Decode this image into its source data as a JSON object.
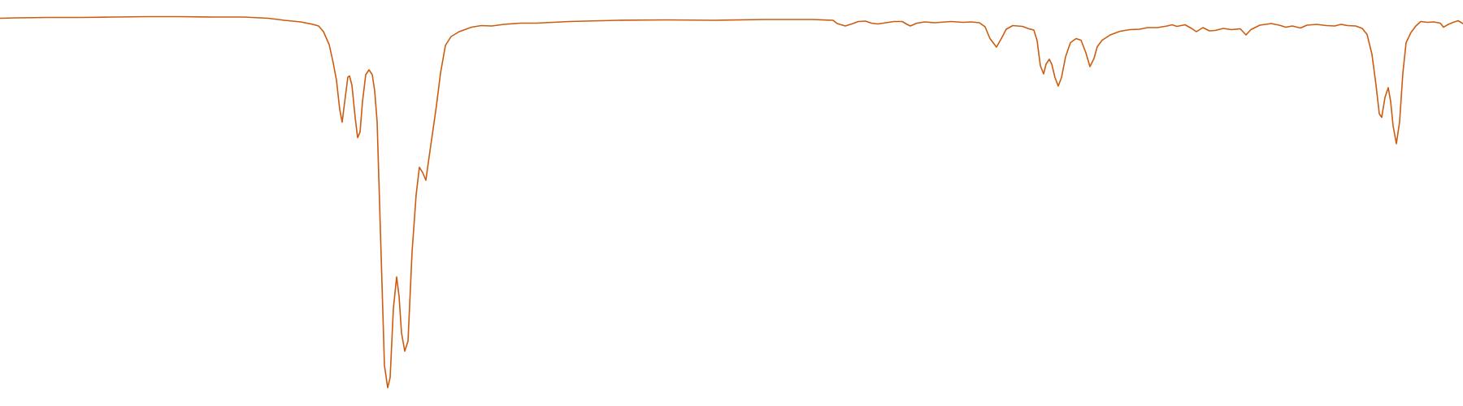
{
  "chart_data": {
    "type": "line",
    "title": "",
    "xlabel": "",
    "ylabel": "",
    "grid": false,
    "axes_visible": false,
    "legend": "none",
    "xlim": [
      0,
      1800
    ],
    "ylim": [
      0,
      100
    ],
    "series": [
      {
        "color": "#cc5c0f",
        "points": [
          [
            0,
            95.5
          ],
          [
            20,
            95.6
          ],
          [
            60,
            95.7
          ],
          [
            100,
            95.7
          ],
          [
            140,
            95.8
          ],
          [
            180,
            95.9
          ],
          [
            220,
            95.9
          ],
          [
            260,
            95.8
          ],
          [
            300,
            95.8
          ],
          [
            330,
            95.5
          ],
          [
            350,
            95.0
          ],
          [
            370,
            94.6
          ],
          [
            385,
            94.0
          ],
          [
            392,
            93.6
          ],
          [
            398,
            92.2
          ],
          [
            405,
            89.0
          ],
          [
            410,
            84.5
          ],
          [
            414,
            80.2
          ],
          [
            418,
            73.0
          ],
          [
            421,
            69.9
          ],
          [
            424,
            74.8
          ],
          [
            428,
            81.0
          ],
          [
            430,
            81.3
          ],
          [
            433,
            79.0
          ],
          [
            437,
            71.0
          ],
          [
            440,
            66.1
          ],
          [
            443,
            67.5
          ],
          [
            446,
            75.0
          ],
          [
            450,
            81.6
          ],
          [
            454,
            82.8
          ],
          [
            458,
            81.6
          ],
          [
            461,
            77.6
          ],
          [
            464,
            70.0
          ],
          [
            467,
            50.0
          ],
          [
            470,
            30.0
          ],
          [
            473,
            10.0
          ],
          [
            477,
            4.5
          ],
          [
            480,
            7.0
          ],
          [
            484,
            24.0
          ],
          [
            488,
            31.8
          ],
          [
            491,
            27.0
          ],
          [
            494,
            18.0
          ],
          [
            498,
            13.5
          ],
          [
            502,
            16.0
          ],
          [
            507,
            38.0
          ],
          [
            512,
            52.0
          ],
          [
            516,
            58.8
          ],
          [
            520,
            57.5
          ],
          [
            524,
            55.6
          ],
          [
            527,
            60.0
          ],
          [
            532,
            67.0
          ],
          [
            537,
            74.0
          ],
          [
            542,
            82.0
          ],
          [
            548,
            88.8
          ],
          [
            555,
            91.0
          ],
          [
            565,
            92.2
          ],
          [
            580,
            93.3
          ],
          [
            592,
            93.7
          ],
          [
            605,
            93.6
          ],
          [
            620,
            94.0
          ],
          [
            640,
            94.3
          ],
          [
            660,
            94.3
          ],
          [
            700,
            94.7
          ],
          [
            760,
            95.0
          ],
          [
            820,
            95.1
          ],
          [
            880,
            95.0
          ],
          [
            940,
            95.2
          ],
          [
            1000,
            95.2
          ],
          [
            1025,
            95.0
          ],
          [
            1030,
            94.2
          ],
          [
            1040,
            93.6
          ],
          [
            1048,
            94.1
          ],
          [
            1056,
            94.7
          ],
          [
            1065,
            94.8
          ],
          [
            1072,
            94.3
          ],
          [
            1080,
            94.1
          ],
          [
            1090,
            94.4
          ],
          [
            1100,
            94.7
          ],
          [
            1110,
            94.7
          ],
          [
            1116,
            94.0
          ],
          [
            1120,
            93.6
          ],
          [
            1128,
            94.3
          ],
          [
            1138,
            94.6
          ],
          [
            1150,
            94.4
          ],
          [
            1170,
            94.7
          ],
          [
            1185,
            94.5
          ],
          [
            1195,
            94.6
          ],
          [
            1205,
            94.4
          ],
          [
            1212,
            93.4
          ],
          [
            1218,
            90.5
          ],
          [
            1226,
            88.4
          ],
          [
            1232,
            90.5
          ],
          [
            1238,
            92.8
          ],
          [
            1246,
            93.7
          ],
          [
            1258,
            93.5
          ],
          [
            1266,
            92.9
          ],
          [
            1272,
            92.6
          ],
          [
            1276,
            90.0
          ],
          [
            1280,
            83.8
          ],
          [
            1284,
            81.8
          ],
          [
            1287,
            84.2
          ],
          [
            1291,
            85.4
          ],
          [
            1294,
            84.2
          ],
          [
            1298,
            80.9
          ],
          [
            1302,
            78.8
          ],
          [
            1306,
            80.9
          ],
          [
            1311,
            86.0
          ],
          [
            1317,
            89.5
          ],
          [
            1324,
            90.5
          ],
          [
            1330,
            90.1
          ],
          [
            1336,
            87.0
          ],
          [
            1341,
            83.6
          ],
          [
            1346,
            85.6
          ],
          [
            1350,
            88.5
          ],
          [
            1356,
            90.1
          ],
          [
            1366,
            91.4
          ],
          [
            1378,
            92.3
          ],
          [
            1390,
            92.7
          ],
          [
            1402,
            92.8
          ],
          [
            1412,
            93.2
          ],
          [
            1424,
            93.2
          ],
          [
            1436,
            93.6
          ],
          [
            1442,
            93.9
          ],
          [
            1448,
            93.5
          ],
          [
            1458,
            93.9
          ],
          [
            1466,
            93.0
          ],
          [
            1472,
            92.2
          ],
          [
            1480,
            93.2
          ],
          [
            1488,
            92.4
          ],
          [
            1495,
            92.5
          ],
          [
            1505,
            93.0
          ],
          [
            1515,
            92.7
          ],
          [
            1526,
            92.9
          ],
          [
            1533,
            91.4
          ],
          [
            1539,
            92.7
          ],
          [
            1550,
            93.8
          ],
          [
            1564,
            94.2
          ],
          [
            1574,
            93.8
          ],
          [
            1582,
            93.3
          ],
          [
            1590,
            93.6
          ],
          [
            1600,
            93.1
          ],
          [
            1608,
            93.8
          ],
          [
            1620,
            94.0
          ],
          [
            1632,
            93.7
          ],
          [
            1642,
            93.6
          ],
          [
            1650,
            94.0
          ],
          [
            1658,
            93.7
          ],
          [
            1668,
            93.6
          ],
          [
            1676,
            93.0
          ],
          [
            1682,
            91.5
          ],
          [
            1688,
            86.6
          ],
          [
            1693,
            79.0
          ],
          [
            1697,
            72.0
          ],
          [
            1700,
            71.1
          ],
          [
            1704,
            76.0
          ],
          [
            1708,
            78.4
          ],
          [
            1711,
            75.0
          ],
          [
            1714,
            69.0
          ],
          [
            1718,
            64.6
          ],
          [
            1722,
            70.0
          ],
          [
            1726,
            82.0
          ],
          [
            1730,
            89.5
          ],
          [
            1736,
            92.0
          ],
          [
            1742,
            93.6
          ],
          [
            1748,
            94.7
          ],
          [
            1756,
            94.5
          ],
          [
            1764,
            94.6
          ],
          [
            1772,
            94.3
          ],
          [
            1776,
            93.3
          ],
          [
            1782,
            94.0
          ],
          [
            1788,
            94.5
          ],
          [
            1794,
            94.9
          ],
          [
            1800,
            94.2
          ]
        ]
      }
    ]
  }
}
